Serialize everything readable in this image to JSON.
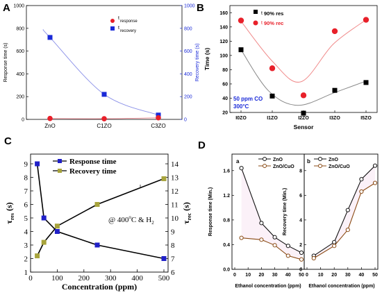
{
  "panel_labels": [
    "A",
    "B",
    "C",
    "D"
  ],
  "chart_data": [
    {
      "panel": "A",
      "type": "scatter",
      "categories": [
        "ZnO",
        "C1ZO",
        "C3ZO"
      ],
      "ylabel": "Response time (s)",
      "y2label": "Recovery time (s)",
      "ylim": [
        0,
        1000
      ],
      "y2lim": [
        0,
        1000
      ],
      "yticks": [
        "0",
        "200",
        "400",
        "600",
        "800",
        "1000"
      ],
      "y2ticks": [
        "0",
        "200",
        "400",
        "600",
        "800",
        "1000"
      ],
      "legend": {
        "response_prefix": "t",
        "response_sub": "response",
        "recovery_prefix": "t",
        "recovery_sub": "recovery"
      },
      "legend_placement": "top-right",
      "series": [
        {
          "key": "response",
          "axis": "left",
          "color": "#e8202a",
          "marker": "circle",
          "values": [
            8,
            6,
            14
          ]
        },
        {
          "key": "recovery",
          "axis": "right",
          "color": "#1a2ad8",
          "marker": "square",
          "values": [
            720,
            220,
            38
          ]
        }
      ]
    },
    {
      "panel": "B",
      "type": "scatter",
      "categories": [
        "I0ZO",
        "I1ZO",
        "I2ZO",
        "I3ZO",
        "I5ZO"
      ],
      "xlabel": "Sensor",
      "ylabel": "Time (s)",
      "ylim": [
        20,
        170
      ],
      "yticks": [
        "20",
        "40",
        "60",
        "80",
        "100",
        "120",
        "140",
        "160"
      ],
      "annotation": [
        "50 ppm CO",
        "300°C"
      ],
      "legend": {
        "res_prefix": "t",
        "res_text": "90% res",
        "rec_prefix": "t",
        "rec_text": "90% rec"
      },
      "legend_placement": "top-left",
      "series": [
        {
          "key": "res",
          "color": "#000000",
          "marker": "square",
          "values": [
            108,
            43,
            19,
            51,
            62
          ]
        },
        {
          "key": "rec",
          "color": "#e8202a",
          "marker": "circle",
          "values": [
            149,
            82,
            44,
            134,
            150
          ]
        }
      ]
    },
    {
      "panel": "C",
      "type": "line",
      "xlabel": "Concentration (ppm)",
      "ylabel_main": "τ",
      "ylabel_sub": "res",
      "ylabel_unit": " (s)",
      "y2label_main": "τ",
      "y2label_sub": "rec",
      "y2label_unit": " (s)",
      "xlim": [
        0,
        500
      ],
      "ylim": [
        1,
        9
      ],
      "y2lim": [
        6,
        14
      ],
      "xticks": [
        "0",
        "100",
        "200",
        "300",
        "400",
        "500"
      ],
      "yticks": [
        "1",
        "2",
        "3",
        "4",
        "5",
        "6",
        "7",
        "8",
        "9"
      ],
      "y2ticks": [
        "6",
        "7",
        "8",
        "9",
        "10",
        "11",
        "12",
        "13",
        "14"
      ],
      "annotation_text": "@ 400",
      "annotation_sup": "o",
      "annotation_rest": "C & H",
      "annotation_sub": "2",
      "legend": {
        "response": "Response time",
        "recovery": "Recovery time"
      },
      "legend_placement": "top-center",
      "series": [
        {
          "key": "response",
          "axis": "left",
          "color": "#2020c8",
          "marker": "square",
          "x": [
            25,
            50,
            100,
            250,
            500
          ],
          "y": [
            9,
            5,
            4,
            3,
            2
          ]
        },
        {
          "key": "recovery",
          "axis": "right",
          "color": "#a8a43c",
          "marker": "square",
          "x": [
            25,
            50,
            100,
            250,
            500
          ],
          "y": [
            7.2,
            8.2,
            9.4,
            11,
            12.9
          ]
        }
      ]
    },
    {
      "panel": "D-a",
      "type": "line",
      "subtitle": "a",
      "xlabel": "Ethanol concentration (ppm)",
      "ylabel": "Response time (Min.)",
      "xlim": [
        0,
        50
      ],
      "ylim": [
        0,
        1.8
      ],
      "xticks": [
        "0",
        "10",
        "20",
        "30",
        "40",
        "50"
      ],
      "yticks": [
        "0.0",
        "0.4",
        "0.8",
        "1.2",
        "1.6"
      ],
      "legend": {
        "zno": "ZnO",
        "znocuo": "ZnO/CuO"
      },
      "legend_placement": "top-right",
      "series": [
        {
          "key": "zno",
          "color": "#111111",
          "marker": "circle",
          "x": [
            5,
            20,
            30,
            40,
            50
          ],
          "y": [
            1.64,
            0.75,
            0.52,
            0.38,
            0.27
          ]
        },
        {
          "key": "znocuo",
          "color": "#8a4a14",
          "marker": "circle",
          "x": [
            5,
            20,
            30,
            40,
            50
          ],
          "y": [
            0.51,
            0.48,
            0.39,
            0.22,
            0.16
          ]
        }
      ]
    },
    {
      "panel": "D-b",
      "type": "line",
      "subtitle": "b",
      "xlabel": "Ethanol concentration (ppm)",
      "ylabel": "Recovery time (Min.)",
      "xlim": [
        0,
        50
      ],
      "ylim": [
        0,
        9
      ],
      "xticks": [
        "0",
        "10",
        "20",
        "30",
        "40",
        "50"
      ],
      "yticks": [
        "0",
        "2",
        "4",
        "6",
        "8"
      ],
      "legend": {
        "zno": "ZnO",
        "znocuo": "ZnO/CuO"
      },
      "legend_placement": "top-left",
      "series": [
        {
          "key": "zno",
          "color": "#111111",
          "marker": "circle",
          "x": [
            5,
            20,
            30,
            40,
            50
          ],
          "y": [
            1.1,
            2.2,
            4.8,
            7.3,
            8.4
          ]
        },
        {
          "key": "znocuo",
          "color": "#8a4a14",
          "marker": "circle",
          "x": [
            5,
            20,
            30,
            40,
            50
          ],
          "y": [
            0.9,
            1.9,
            3.2,
            6.3,
            7.0
          ]
        }
      ]
    }
  ]
}
